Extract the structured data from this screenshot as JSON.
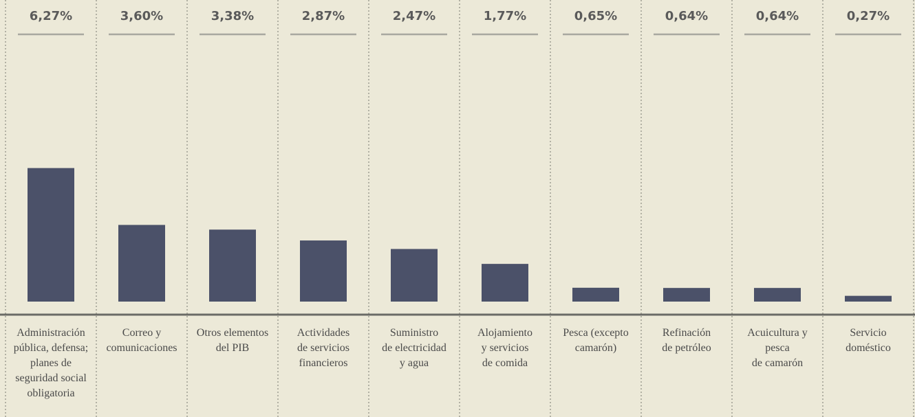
{
  "chart_data": {
    "type": "bar",
    "categories": [
      "Administración\npública, defensa;\nplanes de\nseguridad social\nobligatoria",
      "Correo y\ncomunicaciones",
      "Otros elementos\ndel PIB",
      "Actividades\nde servicios\nfinancieros",
      "Suministro\nde electricidad\ny agua",
      "Alojamiento\ny servicios\nde comida",
      "Pesca (excepto\ncamarón)",
      "Refinación\nde petróleo",
      "Acuicultura y\npesca\nde camarón",
      "Servicio\ndoméstico"
    ],
    "values": [
      6.27,
      3.6,
      3.38,
      2.87,
      2.47,
      1.77,
      0.65,
      0.64,
      0.64,
      0.27
    ],
    "value_labels": [
      "6,27%",
      "3,60%",
      "3,38%",
      "2,87%",
      "2,47%",
      "1,77%",
      "0,65%",
      "0,64%",
      "0,64%",
      "0,27%"
    ],
    "color": "#4b5169"
  }
}
